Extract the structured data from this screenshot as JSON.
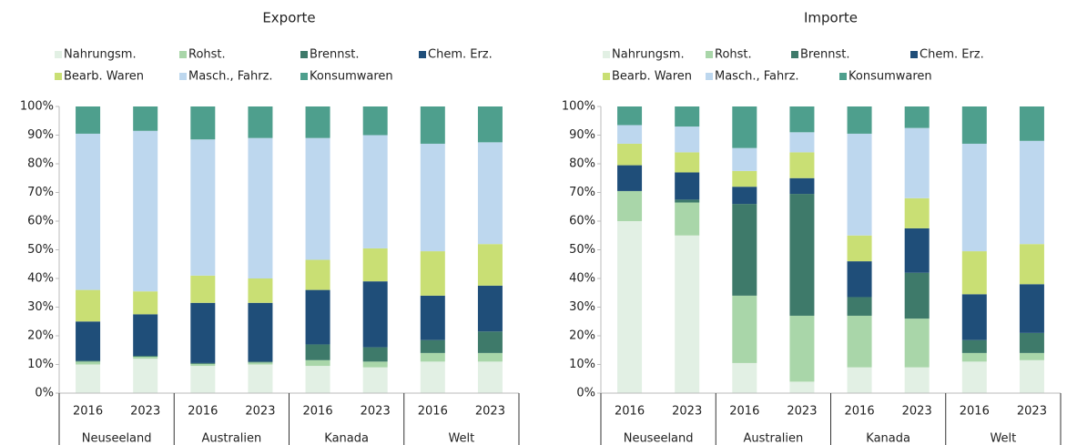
{
  "chart_data": [
    {
      "type": "stacked_bar",
      "title": "Exporte",
      "categories": [
        "2016",
        "2023",
        "2016",
        "2023",
        "2016",
        "2023",
        "2016",
        "2023"
      ],
      "groups": [
        "Neuseeland",
        "Australien",
        "Kanada",
        "Welt"
      ],
      "ylim": [
        0,
        100
      ],
      "yticks": [
        {
          "value": 0,
          "label": "0%"
        },
        {
          "value": 10,
          "label": "10%"
        },
        {
          "value": 20,
          "label": "20%"
        },
        {
          "value": 30,
          "label": "30%"
        },
        {
          "value": 40,
          "label": "40%"
        },
        {
          "value": 50,
          "label": "50%"
        },
        {
          "value": 60,
          "label": "60%"
        },
        {
          "value": 70,
          "label": "70%"
        },
        {
          "value": 80,
          "label": "80%"
        },
        {
          "value": 90,
          "label": "90%"
        },
        {
          "value": 100,
          "label": "100%"
        }
      ],
      "series": [
        {
          "name": "Nahrungsm.",
          "color": "#e2f0e4",
          "values": [
            10,
            12,
            9.5,
            10,
            9.5,
            9,
            11,
            11
          ]
        },
        {
          "name": "Rohst.",
          "color": "#a9d6a9",
          "values": [
            1,
            0.7,
            0.7,
            0.7,
            2,
            2,
            3,
            3
          ]
        },
        {
          "name": "Brennst.",
          "color": "#3e7a6a",
          "values": [
            0.3,
            0.3,
            0.3,
            0.3,
            5.5,
            5,
            4.5,
            7.5
          ]
        },
        {
          "name": "Chem. Erz.",
          "color": "#1f4e79",
          "values": [
            13.7,
            14.5,
            21,
            20.5,
            19,
            23,
            15.5,
            16
          ]
        },
        {
          "name": "Bearb. Waren",
          "color": "#c9df74",
          "values": [
            11,
            8,
            9.5,
            8.5,
            10.5,
            11.5,
            15.5,
            14.5
          ]
        },
        {
          "name": "Masch., Fahrz.",
          "color": "#bdd7ee",
          "values": [
            54.5,
            56,
            47.5,
            49,
            42.5,
            39.5,
            37.5,
            35.5
          ]
        },
        {
          "name": "Konsumwaren",
          "color": "#4e9f8d",
          "values": [
            9.5,
            8.5,
            11.5,
            11,
            11,
            10,
            13,
            12.5
          ]
        }
      ]
    },
    {
      "type": "stacked_bar",
      "title": "Importe",
      "categories": [
        "2016",
        "2023",
        "2016",
        "2023",
        "2016",
        "2023",
        "2016",
        "2023"
      ],
      "groups": [
        "Neuseeland",
        "Australien",
        "Kanada",
        "Welt"
      ],
      "ylim": [
        0,
        100
      ],
      "yticks": [
        {
          "value": 0,
          "label": "0%"
        },
        {
          "value": 10,
          "label": "10%"
        },
        {
          "value": 20,
          "label": "20%"
        },
        {
          "value": 30,
          "label": "30%"
        },
        {
          "value": 40,
          "label": "40%"
        },
        {
          "value": 50,
          "label": "50%"
        },
        {
          "value": 60,
          "label": "60%"
        },
        {
          "value": 70,
          "label": "70%"
        },
        {
          "value": 80,
          "label": "80%"
        },
        {
          "value": 90,
          "label": "90%"
        },
        {
          "value": 100,
          "label": "100%"
        }
      ],
      "series": [
        {
          "name": "Nahrungsm.",
          "color": "#e2f0e4",
          "values": [
            60,
            55,
            10.5,
            4,
            9,
            9,
            11,
            11.5
          ]
        },
        {
          "name": "Rohst.",
          "color": "#a9d6a9",
          "values": [
            10.5,
            11.5,
            23.5,
            23,
            18,
            17,
            3,
            2.5
          ]
        },
        {
          "name": "Brennst.",
          "color": "#3e7a6a",
          "values": [
            0,
            1,
            32,
            42.5,
            6.5,
            16,
            4.5,
            7
          ]
        },
        {
          "name": "Chem. Erz.",
          "color": "#1f4e79",
          "values": [
            9,
            9.5,
            6,
            5.5,
            12.5,
            15.5,
            16,
            17
          ]
        },
        {
          "name": "Bearb. Waren",
          "color": "#c9df74",
          "values": [
            7.5,
            7,
            5.5,
            9,
            9,
            10.5,
            15,
            14
          ]
        },
        {
          "name": "Masch., Fahrz.",
          "color": "#bdd7ee",
          "values": [
            6.5,
            9,
            8,
            7,
            35.5,
            24.5,
            37.5,
            36
          ]
        },
        {
          "name": "Konsumwaren",
          "color": "#4e9f8d",
          "values": [
            6.5,
            7,
            14.5,
            9,
            9.5,
            7.5,
            13,
            12
          ]
        }
      ]
    }
  ]
}
